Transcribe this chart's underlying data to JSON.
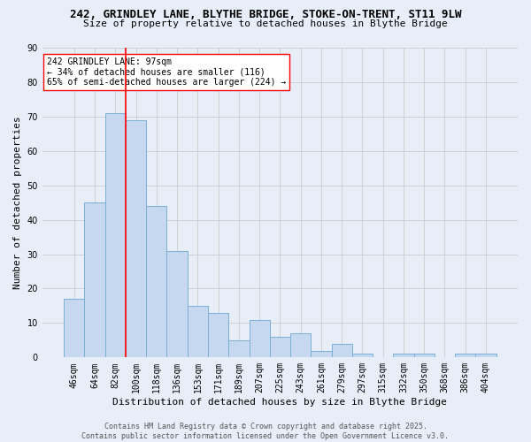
{
  "title1": "242, GRINDLEY LANE, BLYTHE BRIDGE, STOKE-ON-TRENT, ST11 9LW",
  "title2": "Size of property relative to detached houses in Blythe Bridge",
  "xlabel": "Distribution of detached houses by size in Blythe Bridge",
  "ylabel": "Number of detached properties",
  "categories": [
    "46sqm",
    "64sqm",
    "82sqm",
    "100sqm",
    "118sqm",
    "136sqm",
    "153sqm",
    "171sqm",
    "189sqm",
    "207sqm",
    "225sqm",
    "243sqm",
    "261sqm",
    "279sqm",
    "297sqm",
    "315sqm",
    "332sqm",
    "350sqm",
    "368sqm",
    "386sqm",
    "404sqm"
  ],
  "values": [
    17,
    45,
    71,
    69,
    44,
    31,
    15,
    13,
    5,
    11,
    6,
    7,
    2,
    4,
    1,
    0,
    1,
    1,
    0,
    1,
    1
  ],
  "bar_color": "#c5d8f0",
  "bar_edge_color": "#7bafd4",
  "vline_color": "red",
  "annotation_text": "242 GRINDLEY LANE: 97sqm\n← 34% of detached houses are smaller (116)\n65% of semi-detached houses are larger (224) →",
  "annotation_box_color": "white",
  "annotation_box_edge": "red",
  "ylim": [
    0,
    90
  ],
  "yticks": [
    0,
    10,
    20,
    30,
    40,
    50,
    60,
    70,
    80,
    90
  ],
  "grid_color": "#cccccc",
  "background_color": "#e8eef8",
  "footer": "Contains HM Land Registry data © Crown copyright and database right 2025.\nContains public sector information licensed under the Open Government Licence v3.0.",
  "title1_fontsize": 9,
  "title2_fontsize": 8,
  "xlabel_fontsize": 8,
  "ylabel_fontsize": 8,
  "tick_fontsize": 7,
  "annotation_fontsize": 7,
  "footer_fontsize": 6
}
